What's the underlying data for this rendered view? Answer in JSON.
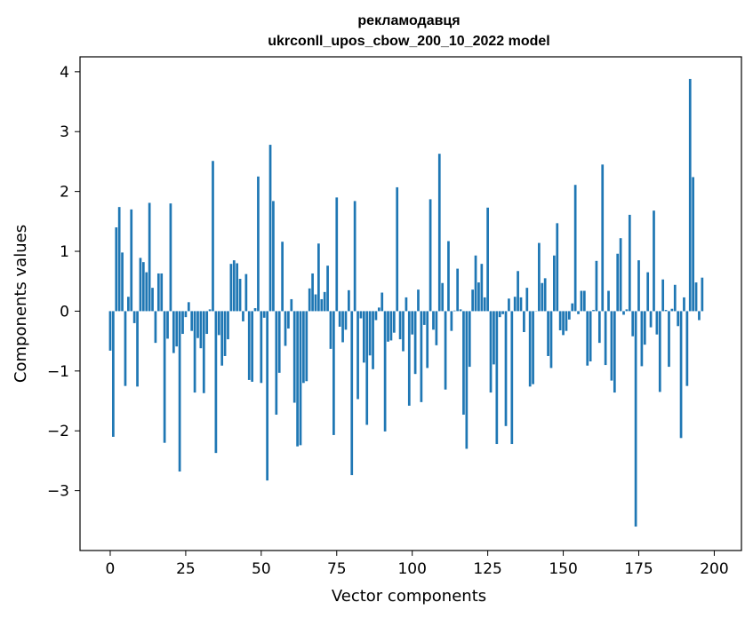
{
  "chart_data": {
    "type": "bar",
    "title_line1": "рекламодавця",
    "title_line2": "ukrconll_upos_cbow_200_10_2022 model",
    "xlabel": "Vector components",
    "ylabel": "Components values",
    "xlim": [
      -10,
      209
    ],
    "ylim": [
      -4.0,
      4.25
    ],
    "xticks": [
      0,
      25,
      50,
      75,
      100,
      125,
      150,
      175,
      200
    ],
    "xtick_labels": [
      "0",
      "25",
      "50",
      "75",
      "100",
      "125",
      "150",
      "175",
      "200"
    ],
    "yticks": [
      -3,
      -2,
      -1,
      0,
      1,
      2,
      3,
      4
    ],
    "ytick_labels": [
      "−3",
      "−2",
      "−1",
      "0",
      "1",
      "2",
      "3",
      "4"
    ],
    "bar_color": "#1f77b4",
    "grid": false,
    "values": [
      -0.66,
      -2.1,
      1.4,
      1.74,
      0.98,
      -1.25,
      0.24,
      1.7,
      -0.2,
      -1.26,
      0.89,
      0.82,
      0.65,
      1.81,
      0.39,
      -0.53,
      0.63,
      0.63,
      -2.2,
      -0.46,
      1.8,
      -0.7,
      -0.59,
      -2.68,
      -0.38,
      -0.1,
      0.15,
      -0.33,
      -1.36,
      -0.45,
      -0.62,
      -1.37,
      -0.38,
      0.03,
      2.51,
      -2.37,
      -0.4,
      -0.91,
      -0.75,
      -0.47,
      0.79,
      0.85,
      0.8,
      0.54,
      -0.17,
      0.62,
      -1.15,
      -1.18,
      0.05,
      2.25,
      -1.2,
      -0.11,
      -2.83,
      2.78,
      1.84,
      -1.73,
      -1.03,
      1.16,
      -0.58,
      -0.29,
      0.2,
      -1.53,
      -2.26,
      -2.24,
      -1.2,
      -1.17,
      0.38,
      0.63,
      0.28,
      1.13,
      0.2,
      0.32,
      0.76,
      -0.63,
      -2.07,
      1.9,
      -0.26,
      -0.52,
      -0.31,
      0.35,
      -2.74,
      1.84,
      -1.47,
      -0.12,
      -0.86,
      -1.9,
      -0.74,
      -0.97,
      -0.15,
      0.06,
      0.31,
      -2.01,
      -0.51,
      -0.49,
      -0.36,
      2.07,
      -0.47,
      -0.67,
      0.23,
      -1.58,
      -0.39,
      -1.05,
      0.36,
      -1.52,
      -0.23,
      -0.95,
      1.87,
      -0.31,
      -0.57,
      2.63,
      0.47,
      -1.31,
      1.17,
      -0.33,
      0.01,
      0.71,
      0.03,
      -1.73,
      -2.3,
      -0.93,
      0.36,
      0.93,
      0.48,
      0.79,
      0.23,
      1.73,
      -1.36,
      -0.89,
      -2.22,
      -0.1,
      -0.05,
      -1.92,
      0.21,
      -2.22,
      0.24,
      0.67,
      0.23,
      -0.35,
      0.39,
      -1.26,
      -1.22,
      0.0,
      1.14,
      0.47,
      0.55,
      -0.75,
      -0.95,
      0.93,
      1.47,
      -0.32,
      -0.4,
      -0.33,
      -0.14,
      0.13,
      2.11,
      -0.05,
      0.34,
      0.34,
      -0.91,
      -0.84,
      0.02,
      0.84,
      -0.53,
      2.45,
      -0.9,
      0.34,
      -1.16,
      -1.36,
      0.96,
      1.22,
      -0.06,
      0.03,
      1.61,
      -0.42,
      -3.6,
      0.85,
      -0.92,
      -0.56,
      0.65,
      -0.27,
      1.68,
      -0.39,
      -1.35,
      0.53,
      0.02,
      -0.93,
      0.04,
      0.44,
      -0.25,
      -2.12,
      0.23,
      -1.25,
      3.88,
      2.24,
      0.48,
      -0.15,
      0.56
    ]
  }
}
